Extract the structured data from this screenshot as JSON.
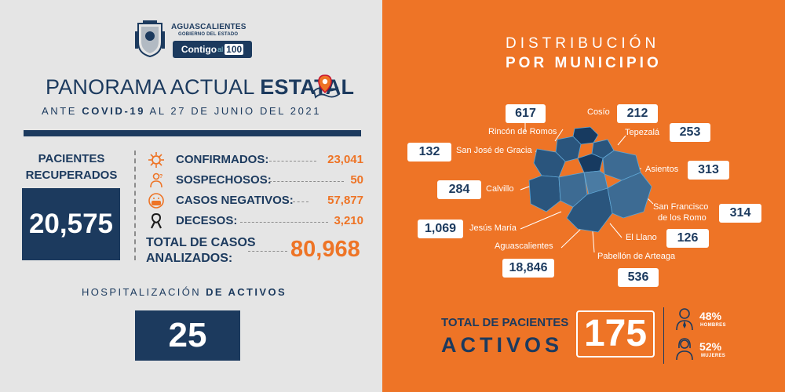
{
  "header": {
    "gov_name": "AGUASCALIENTES",
    "gov_sub": "GOBIERNO DEL ESTADO",
    "slogan_a": "Contigo",
    "slogan_b": "al",
    "slogan_c": "100",
    "title_a": "PANORAMA ACTUAL ",
    "title_b": "ESTATAL",
    "date_a": "ANTE ",
    "date_b": "COVID-19",
    "date_c": " AL 27 DE JUNIO DEL 2021"
  },
  "recuperados": {
    "label_line1": "PACIENTES",
    "label_line2": "RECUPERADOS",
    "value": "20,575"
  },
  "stats": [
    {
      "label": "CONFIRMADOS:",
      "value": "23,041",
      "icon": "virus-icon"
    },
    {
      "label": "SOSPECHOSOS:",
      "value": "50",
      "icon": "suspect-icon"
    },
    {
      "label": "CASOS NEGATIVOS:",
      "value": "57,877",
      "icon": "face-mask-icon"
    },
    {
      "label": "DECESOS:",
      "value": "3,210",
      "icon": "ribbon-icon"
    }
  ],
  "total": {
    "label_line1": "TOTAL DE CASOS",
    "label_line2": "ANALIZADOS:",
    "value": "80,968"
  },
  "hospitalizacion": {
    "label_a": "HOSPITALIZACIÓN ",
    "label_b": "DE ACTIVOS",
    "value": "25"
  },
  "distribucion": {
    "title_line1": "DISTRIBUCIÓN",
    "title_line2": "POR MUNICIPIO"
  },
  "municipios": [
    {
      "name": "Rincón de Romos",
      "value": "617"
    },
    {
      "name": "Cosío",
      "value": "212"
    },
    {
      "name": "Tepezalá",
      "value": "253"
    },
    {
      "name": "San José de Gracia",
      "value": "132"
    },
    {
      "name": "Asientos",
      "value": "313"
    },
    {
      "name": "Calvillo",
      "value": "284"
    },
    {
      "name": "San Francisco",
      "name2": "de los Romo",
      "value": "314"
    },
    {
      "name": "Jesús María",
      "value": "1,069"
    },
    {
      "name": "El Llano",
      "value": "126"
    },
    {
      "name": "Aguascalientes",
      "value": "18,846"
    },
    {
      "name": "Pabellón de Arteaga",
      "value": "536"
    }
  ],
  "activos": {
    "label_line1": "TOTAL DE PACIENTES",
    "label_line2": "ACTIVOS",
    "value": "175",
    "hombres_pct": "48%",
    "hombres_label": "HOMBRES",
    "mujeres_pct": "52%",
    "mujeres_label": "MUJERES"
  },
  "colors": {
    "navy": "#1c3a5e",
    "orange": "#ee7426",
    "panel_gray": "#e5e5e5"
  }
}
